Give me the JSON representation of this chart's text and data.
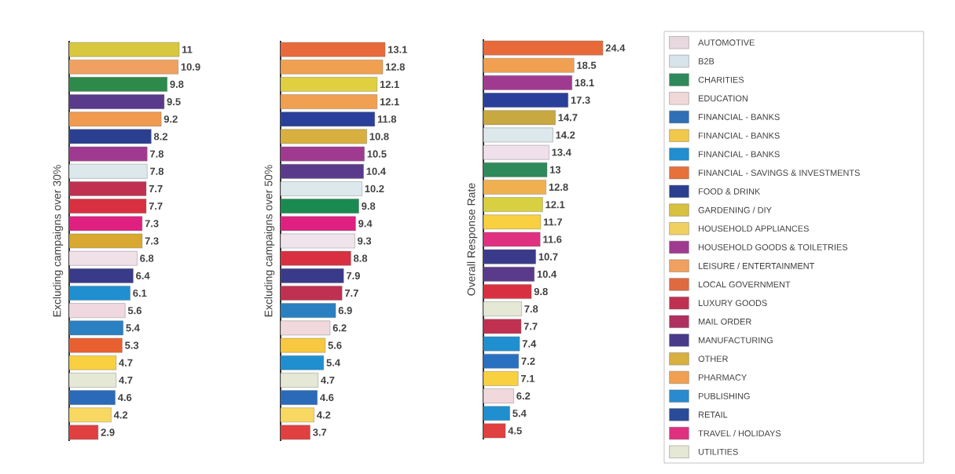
{
  "chart_data": [
    {
      "type": "bar",
      "orientation": "horizontal",
      "ylabel": "Excluding campaigns over 30%",
      "categories": [
        null,
        null,
        null,
        null,
        null,
        null,
        null,
        null,
        null,
        null,
        null,
        null,
        null,
        null,
        null,
        null,
        null,
        null,
        null,
        null,
        null,
        null,
        null
      ],
      "values": [
        11,
        10.9,
        9.8,
        9.5,
        9.2,
        8.2,
        7.8,
        7.8,
        7.7,
        7.7,
        7.3,
        7.3,
        6.8,
        6.4,
        6.1,
        5.6,
        5.4,
        5.3,
        4.7,
        4.7,
        4.6,
        4.2,
        2.9
      ],
      "colors": [
        "#d8c840",
        "#f0a060",
        "#2e8a4a",
        "#5a3a8a",
        "#f09a50",
        "#2a3f90",
        "#a03a90",
        "#dce8ec",
        "#c03050",
        "#d83040",
        "#e02080",
        "#d8a830",
        "#f0e0e8",
        "#3a3a8a",
        "#1f8fd0",
        "#f0d8e0",
        "#2a80c0",
        "#e86030",
        "#f8d040",
        "#e4e8d4",
        "#2a6ab8",
        "#f8d860",
        "#e04040"
      ],
      "data_labels": true
    },
    {
      "type": "bar",
      "orientation": "horizontal",
      "ylabel": "Excluding campaigns over 50%",
      "categories": [
        null,
        null,
        null,
        null,
        null,
        null,
        null,
        null,
        null,
        null,
        null,
        null,
        null,
        null,
        null,
        null,
        null,
        null,
        null,
        null,
        null,
        null,
        null
      ],
      "values": [
        13.1,
        12.8,
        12.1,
        12.1,
        11.8,
        10.8,
        10.5,
        10.4,
        10.2,
        9.8,
        9.4,
        9.3,
        8.8,
        7.9,
        7.7,
        6.9,
        6.2,
        5.6,
        5.4,
        4.7,
        4.6,
        4.2,
        3.7
      ],
      "colors": [
        "#e86a3a",
        "#f0a050",
        "#e0d040",
        "#f0a050",
        "#2a3f9a",
        "#d8b040",
        "#a03a90",
        "#5a3a8a",
        "#dce8ec",
        "#1a8a50",
        "#e02080",
        "#f0e4ec",
        "#d83040",
        "#3a3a8a",
        "#c03050",
        "#2a80c0",
        "#f0d8dc",
        "#f8c840",
        "#1f8fd0",
        "#e4e8d4",
        "#2a6ab8",
        "#f8d860",
        "#e04040"
      ],
      "data_labels": true
    },
    {
      "type": "bar",
      "orientation": "horizontal",
      "ylabel": "Overall Response Rate",
      "categories": [
        null,
        null,
        null,
        null,
        null,
        null,
        null,
        null,
        null,
        null,
        null,
        null,
        null,
        null,
        null,
        null,
        null,
        null,
        null,
        null,
        null,
        null,
        null
      ],
      "values": [
        24.4,
        18.5,
        18.1,
        17.3,
        14.7,
        14.2,
        13.4,
        13,
        12.8,
        12.1,
        11.7,
        11.6,
        10.7,
        10.4,
        9.8,
        7.8,
        7.7,
        7.4,
        7.2,
        7.1,
        6.2,
        5.4,
        4.5
      ],
      "colors": [
        "#e86a3a",
        "#f0a050",
        "#a03a90",
        "#2a3f9a",
        "#c8a840",
        "#dce8ec",
        "#f0e0ec",
        "#2e8a5a",
        "#f0b050",
        "#d8d040",
        "#f8d040",
        "#e03080",
        "#3a3a8a",
        "#5a3a8a",
        "#d83040",
        "#e4e8d4",
        "#c03050",
        "#1f8fd0",
        "#2a70c0",
        "#f8d040",
        "#f0d8dc",
        "#1f8fd0",
        "#e04040"
      ],
      "data_labels": true
    },
    {
      "type": "other",
      "categories": [
        "AUTOMOTIVE",
        "B2B",
        "CHARITIES",
        "EDUCATION",
        "FINANCIAL - BANKS",
        "FINANCIAL - BANKS",
        "FINANCIAL - BANKS",
        "FINANCIAL - SAVINGS & INVESTMENTS",
        "FOOD & DRINK",
        "GARDENING / DIY",
        "HOUSEHOLD APPLIANCES",
        "HOUSEHOLD GOODS & TOILETRIES",
        "LEISURE / ENTERTAINMENT",
        "LOCAL GOVERNMENT",
        "LUXURY GOODS",
        "MAIL ORDER",
        "MANUFACTURING",
        "OTHER",
        "PHARMACY",
        "PUBLISHING",
        "RETAIL",
        "TRAVEL / HOLIDAYS",
        "UTILITIES"
      ],
      "colors": [
        "#e8d8e0",
        "#d8e4ec",
        "#2e8a5a",
        "#f0d8d8",
        "#2f6fb5",
        "#f2c84a",
        "#1f8fd0",
        "#e8703a",
        "#2a3f90",
        "#d8c040",
        "#f0d060",
        "#a03a90",
        "#f0a060",
        "#e06a40",
        "#c03050",
        "#b03060",
        "#4a3a8a",
        "#d8b040",
        "#f0a050",
        "#2a8ad0",
        "#2a4a9a",
        "#e03080",
        "#e4e8d4"
      ]
    }
  ]
}
